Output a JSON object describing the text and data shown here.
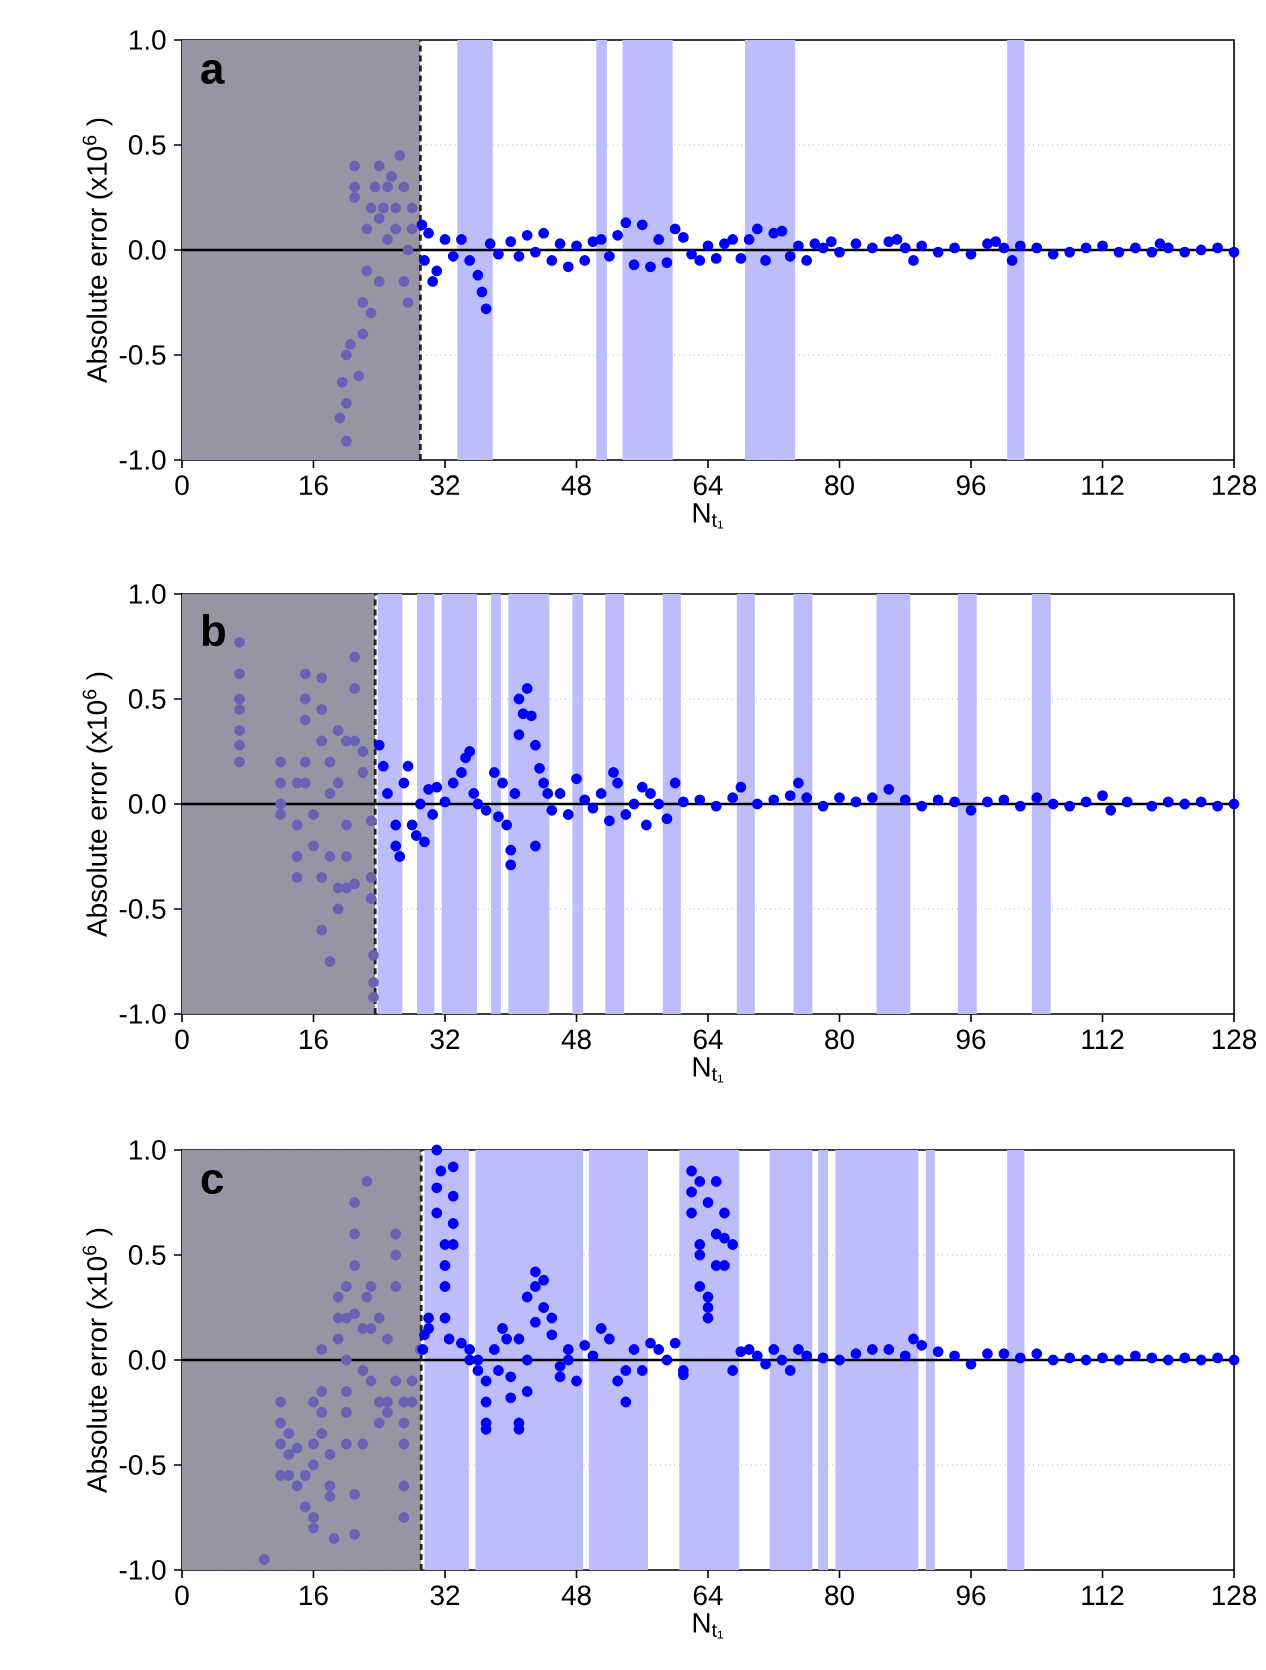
{
  "chart_data": [
    {
      "type": "scatter",
      "title": "a",
      "xlabel": "N$_{t₁}$",
      "ylabel": "Absolute error (x10$^{6}$ )",
      "xlim": [
        0,
        128
      ],
      "ylim": [
        -1,
        1
      ],
      "xticks": [
        0,
        16,
        32,
        48,
        64,
        80,
        96,
        112,
        128
      ],
      "yticks": [
        {
          "value": -1,
          "label": "-1.0"
        },
        {
          "value": -0.5,
          "label": "-0.5"
        },
        {
          "value": 0,
          "label": "0.0"
        },
        {
          "value": 0.5,
          "label": "0.5"
        },
        {
          "value": 1,
          "label": "1.0"
        }
      ],
      "grid": "y",
      "marker": "circle",
      "bands": [
        {
          "axis": "x",
          "from": 0,
          "to": 29,
          "color": "#9795a3"
        },
        {
          "axis": "x",
          "from": 33.5,
          "to": 37.8,
          "color": "#bdbdfb"
        },
        {
          "axis": "x",
          "from": 50.4,
          "to": 51.7,
          "color": "#bdbdfb"
        },
        {
          "axis": "x",
          "from": 53.6,
          "to": 59.7,
          "color": "#bdbdfb"
        },
        {
          "axis": "x",
          "from": 68.5,
          "to": 74.6,
          "color": "#bdbdfb"
        },
        {
          "axis": "x",
          "from": 100.4,
          "to": 102.5,
          "color": "#bdbdfb"
        }
      ],
      "ref_lines": [
        {
          "axis": "y",
          "value": 0,
          "color": "#000000",
          "line_style": "solid"
        },
        {
          "axis": "x",
          "value": 29,
          "color": "#222222",
          "line_style": "dashed"
        }
      ],
      "series": [
        {
          "color": "#6a62b4",
          "x": [
            19.2,
            19.5,
            20,
            20,
            20,
            20.5,
            21,
            21,
            21,
            21.5,
            22,
            22,
            22.5,
            22.5,
            23,
            23,
            23.5,
            24,
            24,
            24,
            24.5,
            25,
            25,
            25.5,
            26,
            26,
            26.5,
            27,
            27,
            27.5,
            27.5,
            28,
            28
          ],
          "values": [
            -0.8,
            -0.63,
            -0.91,
            -0.73,
            -0.5,
            -0.45,
            0.4,
            0.3,
            0.25,
            -0.6,
            -0.4,
            -0.25,
            0.1,
            -0.1,
            0.2,
            -0.3,
            0.3,
            0.4,
            0.15,
            -0.15,
            0.2,
            0.3,
            0.05,
            0.35,
            0.1,
            0.2,
            0.45,
            -0.15,
            0.3,
            0,
            -0.25,
            0.2,
            0.1
          ]
        },
        {
          "color": "#0000ff",
          "x": [
            29.2,
            29.5,
            30,
            30.5,
            31,
            32,
            33,
            34,
            35,
            36,
            36.5,
            37,
            37.5,
            38.5,
            40,
            41,
            42,
            43,
            44,
            45,
            46,
            47,
            48,
            49,
            50,
            51,
            52,
            53,
            54,
            55,
            56,
            57,
            58,
            59,
            60,
            61,
            62,
            63,
            64,
            65,
            66,
            67,
            68,
            69,
            70,
            71,
            72,
            73,
            74,
            75,
            76,
            77,
            78,
            79,
            80,
            82,
            84,
            86,
            87,
            88,
            89,
            90,
            92,
            94,
            96,
            98,
            99,
            100,
            101,
            102,
            104,
            106,
            108,
            110,
            112,
            114,
            116,
            118,
            119,
            120,
            122,
            124,
            126,
            128
          ],
          "values": [
            0.12,
            -0.05,
            0.08,
            -0.15,
            -0.1,
            0.05,
            -0.03,
            0.05,
            -0.05,
            -0.12,
            -0.2,
            -0.28,
            0.03,
            -0.02,
            0.04,
            -0.03,
            0.07,
            -0.01,
            0.08,
            -0.05,
            0.03,
            -0.08,
            0.02,
            -0.05,
            0.04,
            0.05,
            -0.03,
            0.07,
            0.13,
            -0.07,
            0.12,
            -0.08,
            0.05,
            -0.06,
            0.1,
            0.06,
            -0.02,
            -0.05,
            0.02,
            -0.04,
            0.03,
            0.05,
            -0.04,
            0.05,
            0.1,
            -0.05,
            0.08,
            0.09,
            -0.03,
            0.02,
            -0.05,
            0.03,
            0.01,
            0.04,
            -0.01,
            0.03,
            0.01,
            0.04,
            0.05,
            0.01,
            -0.05,
            0.02,
            -0.01,
            0.01,
            -0.02,
            0.03,
            0.04,
            0.01,
            -0.05,
            0.02,
            0.01,
            -0.02,
            -0.01,
            0.01,
            0.02,
            -0.01,
            0.01,
            -0.01,
            0.03,
            0.01,
            -0.01,
            0,
            0.01,
            -0.01
          ]
        }
      ]
    },
    {
      "type": "scatter",
      "title": "b",
      "xlabel": "N$_{t₁}$",
      "ylabel": "Absolute error (x10$^{6}$ )",
      "xlim": [
        0,
        128
      ],
      "ylim": [
        -1,
        1
      ],
      "xticks": [
        0,
        16,
        32,
        48,
        64,
        80,
        96,
        112,
        128
      ],
      "yticks": [
        {
          "value": -1,
          "label": "-1.0"
        },
        {
          "value": -0.5,
          "label": "-0.5"
        },
        {
          "value": 0,
          "label": "0.0"
        },
        {
          "value": 0.5,
          "label": "0.5"
        },
        {
          "value": 1,
          "label": "1.0"
        }
      ],
      "grid": "y",
      "marker": "circle",
      "bands": [
        {
          "axis": "x",
          "from": 0,
          "to": 23.5,
          "color": "#9795a3"
        },
        {
          "axis": "x",
          "from": 23.8,
          "to": 26.8,
          "color": "#bdbdfb"
        },
        {
          "axis": "x",
          "from": 28.6,
          "to": 30.7,
          "color": "#bdbdfb"
        },
        {
          "axis": "x",
          "from": 31.6,
          "to": 35.9,
          "color": "#bdbdfb"
        },
        {
          "axis": "x",
          "from": 37.6,
          "to": 38.8,
          "color": "#bdbdfb"
        },
        {
          "axis": "x",
          "from": 39.7,
          "to": 44.7,
          "color": "#bdbdfb"
        },
        {
          "axis": "x",
          "from": 47.5,
          "to": 48.8,
          "color": "#bdbdfb"
        },
        {
          "axis": "x",
          "from": 51.5,
          "to": 53.8,
          "color": "#bdbdfb"
        },
        {
          "axis": "x",
          "from": 58.5,
          "to": 60.7,
          "color": "#bdbdfb"
        },
        {
          "axis": "x",
          "from": 67.5,
          "to": 69.7,
          "color": "#bdbdfb"
        },
        {
          "axis": "x",
          "from": 74.4,
          "to": 76.7,
          "color": "#bdbdfb"
        },
        {
          "axis": "x",
          "from": 84.5,
          "to": 88.6,
          "color": "#bdbdfb"
        },
        {
          "axis": "x",
          "from": 94.4,
          "to": 96.7,
          "color": "#bdbdfb"
        },
        {
          "axis": "x",
          "from": 103.4,
          "to": 105.7,
          "color": "#bdbdfb"
        }
      ],
      "ref_lines": [
        {
          "axis": "y",
          "value": 0,
          "color": "#000000",
          "line_style": "solid"
        },
        {
          "axis": "x",
          "value": 23.5,
          "color": "#222222",
          "line_style": "dashed"
        }
      ],
      "series": [
        {
          "color": "#6a62b4",
          "x": [
            7,
            7,
            7,
            7,
            7,
            7,
            7,
            12,
            12,
            12,
            12,
            14,
            14,
            14,
            14,
            15,
            15,
            15,
            15,
            15,
            16,
            16,
            17,
            17,
            17,
            17,
            17,
            18,
            18,
            18,
            18,
            19,
            19,
            19,
            19,
            20,
            20,
            20,
            20,
            21,
            21,
            21,
            21,
            22,
            22,
            23,
            23,
            23,
            23.3,
            23.3,
            23.3
          ],
          "values": [
            0.77,
            0.62,
            0.5,
            0.45,
            0.35,
            0.28,
            0.2,
            0.2,
            0.1,
            0,
            -0.05,
            0.1,
            -0.1,
            -0.25,
            -0.35,
            0.62,
            0.5,
            0.4,
            0.2,
            0.1,
            -0.05,
            -0.2,
            0.6,
            0.45,
            0.3,
            -0.35,
            -0.6,
            0.2,
            0.05,
            -0.25,
            -0.75,
            0.35,
            0.1,
            -0.4,
            -0.5,
            0.3,
            -0.1,
            -0.25,
            -0.4,
            0.7,
            0.55,
            0.3,
            -0.38,
            0.25,
            0.15,
            -0.08,
            -0.35,
            -0.45,
            -0.72,
            -0.85,
            -0.92
          ]
        },
        {
          "color": "#0000ff",
          "x": [
            24,
            24.5,
            25,
            26,
            26,
            26.5,
            27,
            27.5,
            28,
            28.5,
            29,
            29.5,
            30,
            30.5,
            31,
            32,
            33,
            34,
            34.5,
            35,
            35.5,
            36,
            37,
            38,
            38.5,
            39,
            39.5,
            40,
            40,
            40.5,
            41,
            41,
            41.5,
            42,
            42.5,
            43,
            43,
            43.5,
            44,
            44.5,
            45,
            46,
            47,
            48,
            49,
            50,
            51,
            52,
            52.5,
            53,
            54,
            55,
            56,
            56.5,
            57,
            58,
            59,
            60,
            61,
            63,
            65,
            67,
            68,
            70,
            72,
            74,
            75,
            76,
            78,
            80,
            82,
            84,
            86,
            88,
            90,
            92,
            94,
            96,
            98,
            100,
            102,
            104,
            106,
            108,
            110,
            112,
            113,
            115,
            118,
            120,
            122,
            124,
            126,
            128
          ],
          "values": [
            0.28,
            0.18,
            0.05,
            -0.1,
            -0.2,
            -0.25,
            0.1,
            0.18,
            -0.1,
            -0.15,
            0,
            -0.18,
            0.07,
            -0.05,
            0.08,
            0.01,
            0.1,
            0.15,
            0.22,
            0.25,
            0.05,
            0,
            -0.03,
            0.15,
            -0.06,
            0.1,
            -0.1,
            -0.22,
            -0.29,
            0.05,
            0.5,
            0.33,
            0.43,
            0.55,
            0.42,
            0.28,
            -0.2,
            0.17,
            0.1,
            0.05,
            -0.03,
            0.05,
            -0.05,
            0.12,
            0.02,
            -0.02,
            0.05,
            -0.08,
            0.15,
            0.1,
            -0.05,
            0,
            0.08,
            -0.1,
            0.05,
            0,
            -0.07,
            0.1,
            0.01,
            0.02,
            -0.01,
            0.03,
            0.08,
            0,
            0.02,
            0.04,
            0.1,
            0.03,
            -0.01,
            0.03,
            0.01,
            0.03,
            0.07,
            0.02,
            -0.01,
            0.02,
            0.01,
            -0.03,
            0.01,
            0.02,
            -0.01,
            0.03,
            0,
            -0.01,
            0.01,
            0.04,
            -0.03,
            0.01,
            -0.01,
            0.01,
            0,
            0.01,
            -0.01,
            0
          ]
        }
      ]
    },
    {
      "type": "scatter",
      "title": "c",
      "xlabel": "N$_{t₁}$",
      "ylabel": "Absolute error (x10$^{6}$ )",
      "xlim": [
        0,
        128
      ],
      "ylim": [
        -1,
        1
      ],
      "xticks": [
        0,
        16,
        32,
        48,
        64,
        80,
        96,
        112,
        128
      ],
      "yticks": [
        {
          "value": -1,
          "label": "-1.0"
        },
        {
          "value": -0.5,
          "label": "-0.5"
        },
        {
          "value": 0,
          "label": "0.0"
        },
        {
          "value": 0.5,
          "label": "0.5"
        },
        {
          "value": 1,
          "label": "1.0"
        }
      ],
      "grid": "y",
      "marker": "circle",
      "bands": [
        {
          "axis": "x",
          "from": 0,
          "to": 29.1,
          "color": "#9795a3"
        },
        {
          "axis": "x",
          "from": 29.5,
          "to": 34.9,
          "color": "#bdbdfb"
        },
        {
          "axis": "x",
          "from": 35.7,
          "to": 48.8,
          "color": "#bdbdfb"
        },
        {
          "axis": "x",
          "from": 49.5,
          "to": 56.7,
          "color": "#bdbdfb"
        },
        {
          "axis": "x",
          "from": 60.5,
          "to": 67.8,
          "color": "#bdbdfb"
        },
        {
          "axis": "x",
          "from": 71.5,
          "to": 76.7,
          "color": "#bdbdfb"
        },
        {
          "axis": "x",
          "from": 77.4,
          "to": 78.6,
          "color": "#bdbdfb"
        },
        {
          "axis": "x",
          "from": 79.5,
          "to": 89.6,
          "color": "#bdbdfb"
        },
        {
          "axis": "x",
          "from": 90.5,
          "to": 91.6,
          "color": "#bdbdfb"
        },
        {
          "axis": "x",
          "from": 100.4,
          "to": 102.5,
          "color": "#bdbdfb"
        }
      ],
      "ref_lines": [
        {
          "axis": "y",
          "value": 0,
          "color": "#000000",
          "line_style": "solid"
        },
        {
          "axis": "x",
          "value": 29.1,
          "color": "#222222",
          "line_style": "dashed"
        }
      ],
      "series": [
        {
          "color": "#6a62b4",
          "x": [
            10,
            12,
            12,
            12,
            12,
            13,
            13,
            13,
            14,
            14,
            15,
            15,
            16,
            16,
            16,
            16,
            16,
            17,
            17,
            17,
            17,
            18,
            18,
            18,
            18.5,
            19,
            19,
            19,
            20,
            20,
            20,
            20,
            20,
            20,
            21,
            21,
            21,
            21,
            21,
            21,
            22,
            22,
            22,
            22.5,
            22.5,
            23,
            23,
            23,
            24,
            24,
            24,
            25,
            25,
            25,
            26,
            26,
            26,
            26,
            27,
            27,
            27,
            27,
            27,
            28,
            28,
            29
          ],
          "values": [
            -0.95,
            -0.2,
            -0.3,
            -0.4,
            -0.55,
            -0.35,
            -0.45,
            -0.55,
            -0.42,
            -0.6,
            -0.55,
            -0.7,
            -0.4,
            -0.5,
            -0.75,
            -0.8,
            -0.2,
            0.05,
            -0.15,
            -0.35,
            -0.25,
            -0.45,
            -0.6,
            -0.65,
            -0.85,
            0.3,
            0.2,
            0.1,
            0.35,
            0.2,
            0,
            -0.15,
            -0.25,
            -0.4,
            0.22,
            -0.64,
            -0.83,
            0.45,
            0.6,
            0.75,
            0.15,
            -0.05,
            -0.4,
            0.85,
            0.3,
            0.35,
            0.15,
            -0.1,
            0.2,
            -0.2,
            -0.3,
            0.1,
            -0.2,
            -0.25,
            0.6,
            0.5,
            0.35,
            -0.1,
            -0.2,
            -0.3,
            -0.4,
            -0.6,
            -0.75,
            -0.1,
            -0.2,
            0.05
          ]
        },
        {
          "color": "#0000ff",
          "x": [
            29.3,
            29.5,
            30,
            30,
            31,
            31,
            31,
            31.5,
            32,
            32,
            32,
            32,
            32.5,
            33,
            33,
            33,
            33,
            34,
            35,
            35,
            36,
            36,
            37,
            37,
            37,
            37,
            38,
            38.5,
            39,
            39.5,
            40,
            40,
            41,
            41,
            41,
            42,
            42,
            42,
            43,
            43,
            43,
            44,
            44,
            45,
            45,
            46,
            46,
            47,
            47,
            48,
            49,
            50,
            51,
            52,
            53,
            54,
            54,
            55,
            56,
            57,
            58,
            59,
            60,
            61,
            61,
            62,
            62,
            62,
            63,
            63,
            63,
            63,
            64,
            64,
            64,
            64,
            65,
            65,
            65,
            66,
            66,
            66,
            67,
            67,
            68,
            69,
            70,
            71,
            72,
            73,
            74,
            75,
            76,
            78,
            80,
            82,
            84,
            86,
            88,
            89,
            90,
            92,
            94,
            96,
            98,
            100,
            102,
            104,
            106,
            108,
            110,
            112,
            114,
            116,
            118,
            120,
            122,
            124,
            126,
            128
          ],
          "values": [
            0.05,
            0.12,
            0.15,
            0.2,
            1,
            0.82,
            0.7,
            0.9,
            0.55,
            0.45,
            0.35,
            0.2,
            0.1,
            0.65,
            0.78,
            0.92,
            0.55,
            0.08,
            0,
            0.05,
            -0.05,
            0,
            -0.1,
            -0.2,
            -0.3,
            -0.33,
            0.05,
            -0.05,
            0.15,
            0.1,
            -0.08,
            -0.18,
            0.1,
            -0.3,
            -0.33,
            0,
            -0.15,
            0.3,
            0.35,
            0.42,
            0.18,
            0.25,
            0.38,
            0.2,
            0.12,
            -0.03,
            -0.08,
            0.05,
            0,
            -0.1,
            0.07,
            0.02,
            0.15,
            0.1,
            -0.1,
            -0.05,
            -0.2,
            0.05,
            -0.05,
            0.08,
            0.05,
            0,
            0.08,
            -0.05,
            -0.07,
            0.9,
            0.8,
            0.7,
            0.55,
            0.35,
            0.5,
            0.85,
            0.3,
            0.25,
            0.2,
            0.75,
            0.85,
            0.6,
            0.45,
            0.7,
            0.58,
            0.45,
            0.55,
            -0.05,
            0.04,
            0.05,
            0.02,
            -0.02,
            0.05,
            0,
            -0.05,
            0.05,
            0.02,
            0.01,
            0,
            0.03,
            0.05,
            0.05,
            0.02,
            0.1,
            0.07,
            0.04,
            0.02,
            -0.02,
            0.03,
            0.03,
            0.01,
            0.03,
            0,
            0.01,
            0,
            0.01,
            0,
            0.02,
            0.01,
            0,
            0.01,
            0,
            0.01,
            0
          ]
        }
      ]
    }
  ]
}
